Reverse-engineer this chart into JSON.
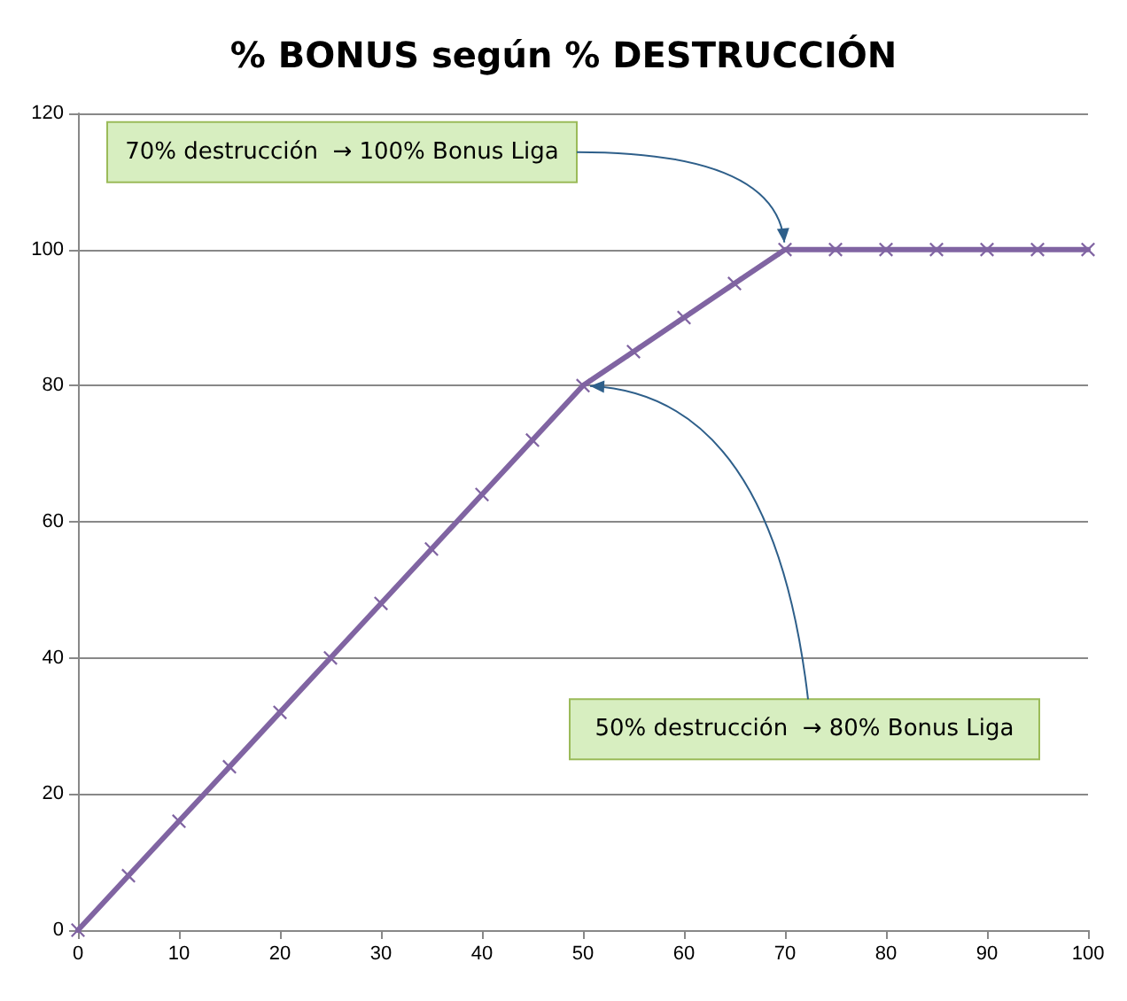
{
  "chart_data": {
    "type": "line",
    "title": "% BONUS según % DESTRUCCIÓN",
    "x": [
      0,
      5,
      10,
      15,
      20,
      25,
      30,
      35,
      40,
      45,
      50,
      55,
      60,
      65,
      70,
      75,
      80,
      85,
      90,
      95,
      100
    ],
    "series": [
      {
        "color": "#8064a2",
        "values": [
          0,
          8,
          16,
          24,
          32,
          40,
          48,
          56,
          64,
          72,
          80,
          85,
          90,
          95,
          100,
          100,
          100,
          100,
          100,
          100,
          100
        ]
      }
    ],
    "xlim": [
      0,
      100
    ],
    "xticks": [
      0,
      10,
      20,
      30,
      40,
      50,
      60,
      70,
      80,
      90,
      100
    ],
    "ylim": [
      0,
      120
    ],
    "yticks": [
      0,
      20,
      40,
      60,
      80,
      100,
      120
    ],
    "grid": "y",
    "marker": "cross",
    "line_style": "solid",
    "annotations": [
      {
        "text": "70% destrucción  → 100% Bonus Liga",
        "x": 70,
        "y": 100
      },
      {
        "text": "50% destrucción  → 80% Bonus Liga",
        "x": 50,
        "y": 80
      }
    ]
  }
}
